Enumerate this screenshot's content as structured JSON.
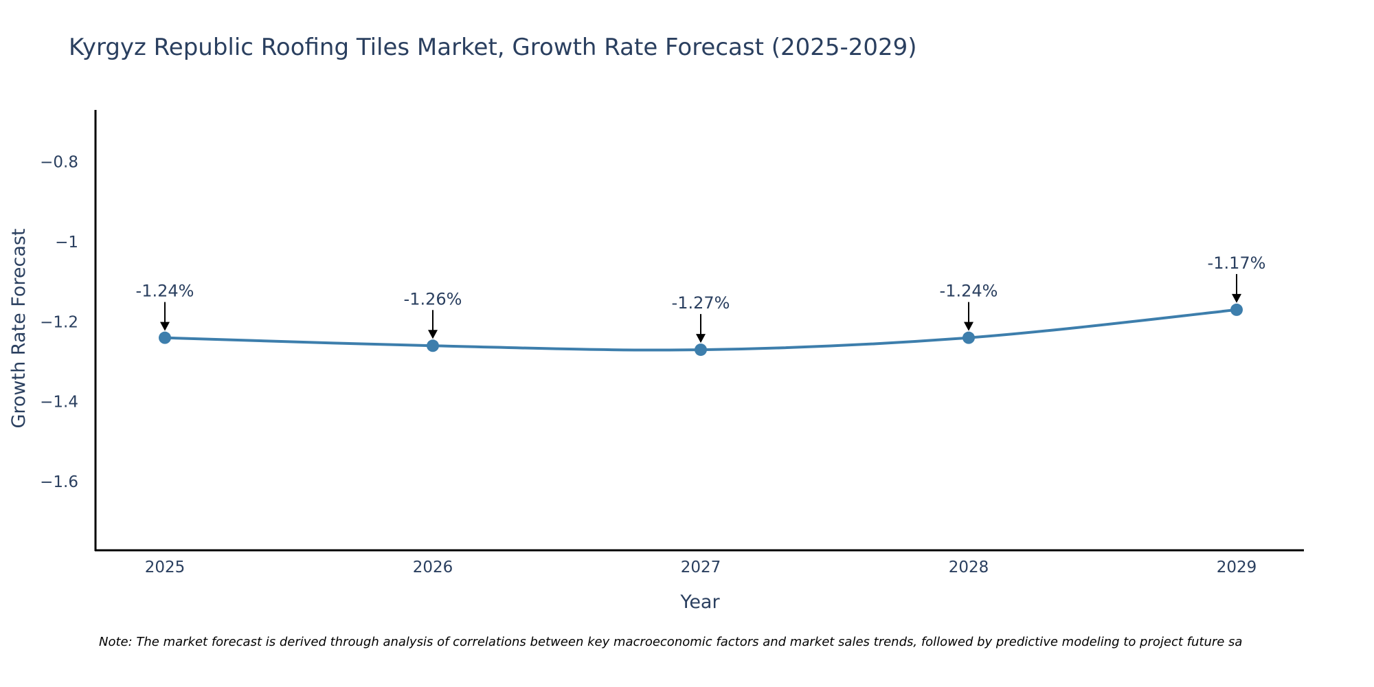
{
  "chart_data": {
    "type": "line",
    "title": "Kyrgyz Republic Roofing Tiles Market, Growth Rate Forecast (2025-2029)",
    "xlabel": "Year",
    "ylabel": "Growth Rate Forecast",
    "categories": [
      "2025",
      "2026",
      "2027",
      "2028",
      "2029"
    ],
    "values": [
      -1.24,
      -1.26,
      -1.27,
      -1.24,
      -1.17
    ],
    "data_labels": [
      "-1.24%",
      "-1.26%",
      "-1.27%",
      "-1.24%",
      "-1.17%"
    ],
    "ylim": [
      -1.77,
      -0.67
    ],
    "yticks": [
      -0.8,
      -1,
      -1.2,
      -1.4,
      -1.6
    ],
    "ytick_labels": [
      "−0.8",
      "−1",
      "−1.2",
      "−1.4",
      "−1.6"
    ],
    "grid": false,
    "line_shape": "spline",
    "line_color": "#3d7eac",
    "marker_color": "#3d7eac",
    "annotation_arrow_color": "#000000",
    "note": "Note: The market forecast is derived through analysis of correlations between key macroeconomic factors and market sales trends, followed by predictive modeling to project future sa"
  }
}
